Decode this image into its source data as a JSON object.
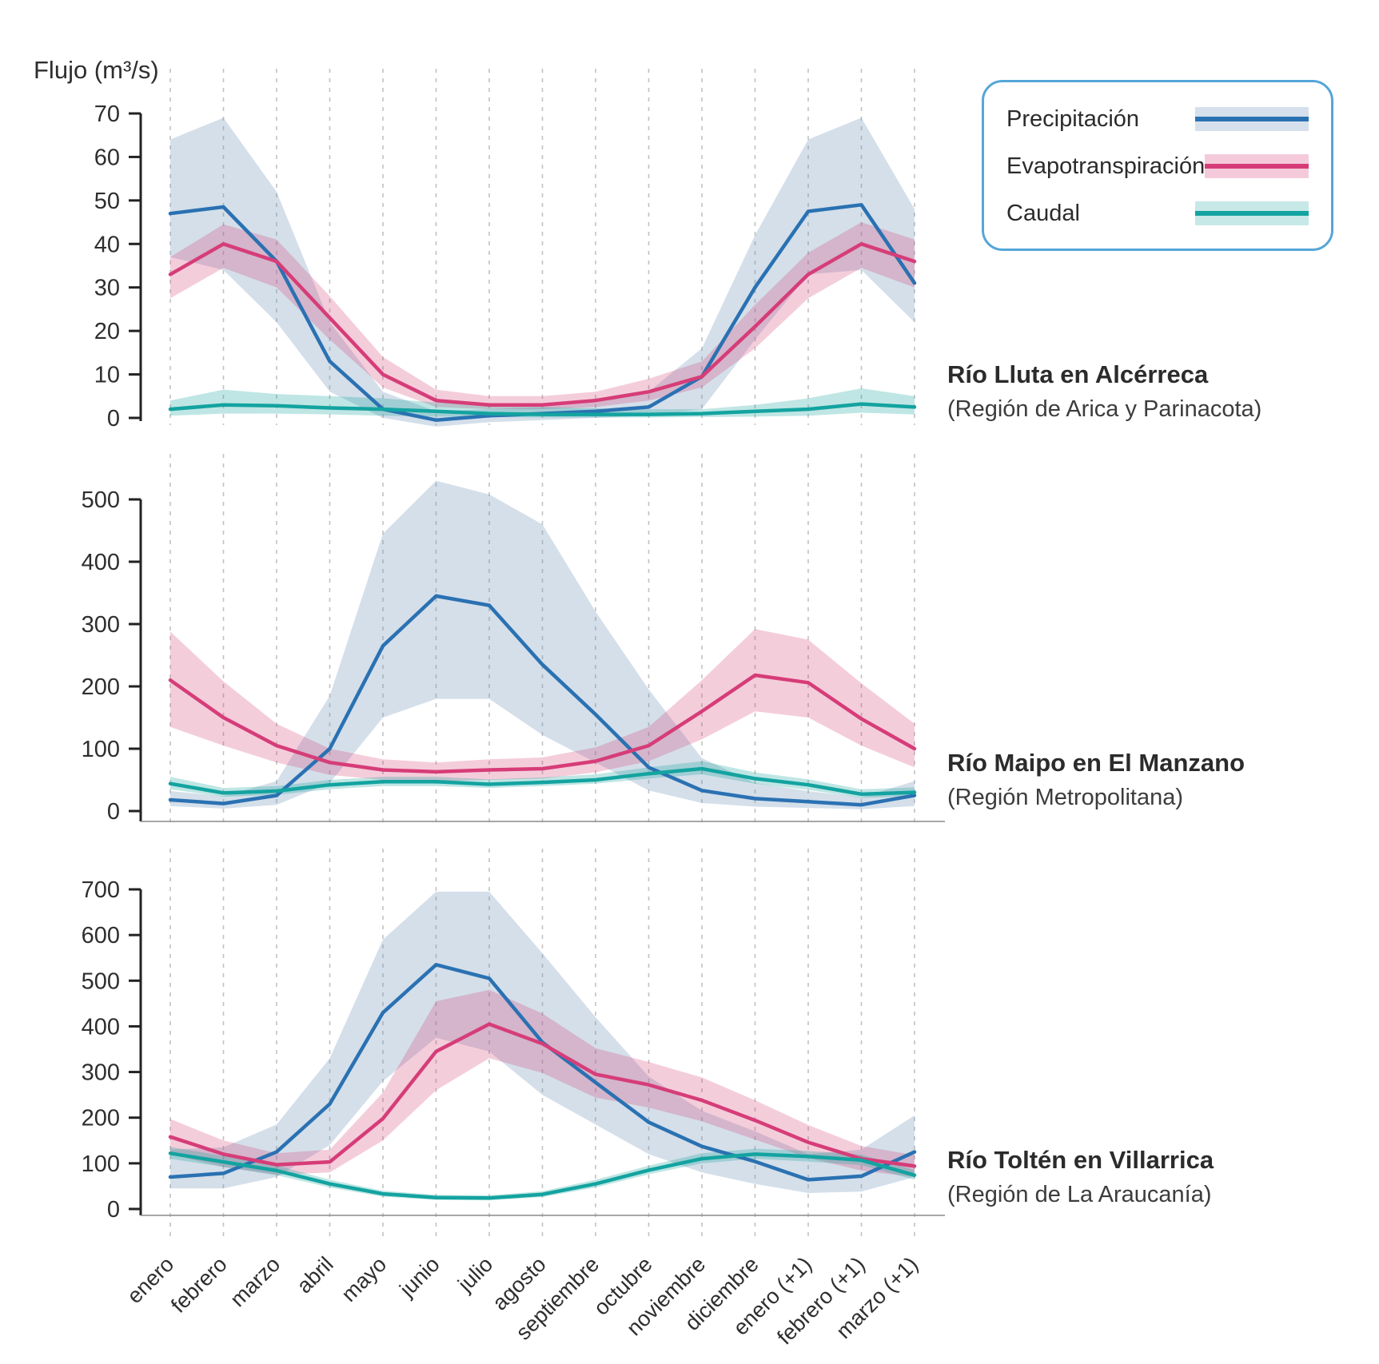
{
  "page": {
    "ylabel": "Flujo (m³/s)"
  },
  "legend": {
    "border_color": "#55a6d8",
    "items": [
      {
        "label": "Precipitación",
        "line": "#2a71b2",
        "band": "#d5e0ec"
      },
      {
        "label": "Evapotranspiración",
        "line": "#d63d78",
        "band": "#f4cadb"
      },
      {
        "label": "Caudal",
        "line": "#13a3a0",
        "band": "#c6e8e6"
      }
    ]
  },
  "months": [
    "enero",
    "febrero",
    "marzo",
    "abril",
    "mayo",
    "junio",
    "julio",
    "agosto",
    "septiembre",
    "octubre",
    "noviembre",
    "diciembre",
    "enero (+1)",
    "febrero (+1)",
    "marzo (+1)"
  ],
  "colors": {
    "precipitacion": {
      "line": "#2a71b2",
      "band": "rgba(100,140,180,0.28)"
    },
    "evapotranspiracion": {
      "line": "#d63d78",
      "band": "rgba(214,61,117,0.26)"
    },
    "caudal": {
      "line": "#13a3a0",
      "band": "rgba(18,161,157,0.27)"
    },
    "grid": "#c2c2c2",
    "axis": "#222222",
    "bottom_spine": "#8a8a8a",
    "tick_text": "#2e2e2e"
  },
  "chart_data": [
    {
      "type": "line",
      "title": "Río Lluta en Alcérreca",
      "subtitle": "(Región de Arica y Parinacota)",
      "ylim": [
        0,
        70
      ],
      "ytick_step": 10,
      "grid": true,
      "legend_position": "top-right",
      "series": [
        {
          "name": "Precipitación",
          "key": "precipitacion",
          "mean": [
            47,
            48.5,
            36,
            13,
            2,
            -0.5,
            0.5,
            1,
            1.5,
            2.5,
            9.5,
            30,
            47.5,
            49,
            31
          ],
          "low": [
            37,
            34,
            22,
            6,
            0,
            -2,
            -1,
            -0.5,
            0,
            0.5,
            2,
            18,
            33,
            34,
            22
          ],
          "high": [
            64,
            69,
            52,
            22,
            6,
            1.5,
            2,
            2.5,
            3.5,
            6,
            16,
            42,
            64,
            69,
            48
          ]
        },
        {
          "name": "Evapotranspiración",
          "key": "evapotranspiracion",
          "mean": [
            33,
            40,
            36,
            23,
            10,
            4,
            3,
            3,
            4,
            6,
            9.5,
            21,
            33,
            40,
            36
          ],
          "low": [
            27.5,
            34.5,
            30,
            18,
            7,
            2.5,
            2,
            2,
            2.5,
            4,
            7,
            16,
            27.5,
            34.5,
            30
          ],
          "high": [
            37,
            44.5,
            41,
            28,
            14,
            6.5,
            5,
            5,
            6,
            9,
            13,
            26,
            38,
            45,
            41
          ]
        },
        {
          "name": "Caudal",
          "key": "caudal",
          "mean": [
            2,
            3,
            2.8,
            2.3,
            2,
            1.5,
            1,
            0.8,
            0.8,
            0.8,
            1,
            1.5,
            2,
            3.2,
            2.5
          ],
          "low": [
            0.5,
            1,
            1,
            0.8,
            0.5,
            0.3,
            0.2,
            0.1,
            0.1,
            0.1,
            0.2,
            0.3,
            0.5,
            1.2,
            0.8
          ],
          "high": [
            4,
            6.5,
            5.5,
            5,
            4.5,
            3.5,
            3,
            2.5,
            2.2,
            2,
            2,
            3,
            4.5,
            6.8,
            5
          ]
        }
      ]
    },
    {
      "type": "line",
      "title": "Río Maipo en El Manzano",
      "subtitle": "(Región Metropolitana)",
      "ylim": [
        0,
        500
      ],
      "ytick_step": 100,
      "grid": true,
      "series": [
        {
          "name": "Precipitación",
          "key": "precipitacion",
          "mean": [
            18,
            12,
            25,
            100,
            265,
            345,
            330,
            235,
            155,
            70,
            33,
            20,
            15,
            10,
            25
          ],
          "low": [
            8,
            4,
            10,
            45,
            150,
            180,
            180,
            122,
            78,
            33,
            13,
            7,
            5,
            3,
            8
          ],
          "high": [
            32,
            24,
            48,
            185,
            445,
            530,
            508,
            460,
            320,
            195,
            85,
            45,
            32,
            22,
            48
          ]
        },
        {
          "name": "Evapotranspiración",
          "key": "evapotranspiracion",
          "mean": [
            210,
            150,
            105,
            78,
            66,
            63,
            66,
            68,
            80,
            105,
            160,
            218,
            206,
            148,
            100
          ],
          "low": [
            135,
            105,
            78,
            58,
            50,
            48,
            50,
            52,
            62,
            80,
            115,
            160,
            150,
            105,
            70
          ],
          "high": [
            288,
            208,
            140,
            100,
            83,
            78,
            83,
            86,
            102,
            135,
            210,
            292,
            275,
            205,
            140
          ]
        },
        {
          "name": "Caudal",
          "key": "caudal",
          "mean": [
            44,
            29,
            32,
            42,
            47,
            47,
            43,
            46,
            50,
            60,
            68,
            52,
            42,
            27,
            30
          ],
          "low": [
            35,
            23,
            26,
            35,
            40,
            40,
            37,
            40,
            44,
            52,
            59,
            44,
            34,
            21,
            24
          ],
          "high": [
            55,
            37,
            40,
            50,
            55,
            55,
            51,
            54,
            59,
            70,
            80,
            62,
            51,
            35,
            38
          ]
        }
      ]
    },
    {
      "type": "line",
      "title": "Río Toltén en Villarrica",
      "subtitle": "(Región de La Araucanía)",
      "ylim": [
        0,
        700
      ],
      "ytick_step": 100,
      "grid": true,
      "series": [
        {
          "name": "Precipitación",
          "key": "precipitacion",
          "mean": [
            70,
            78,
            125,
            230,
            430,
            535,
            505,
            365,
            277,
            190,
            137,
            104,
            64,
            72,
            125
          ],
          "low": [
            45,
            45,
            70,
            140,
            280,
            375,
            345,
            250,
            185,
            120,
            80,
            55,
            35,
            38,
            70
          ],
          "high": [
            130,
            135,
            185,
            330,
            590,
            695,
            695,
            560,
            420,
            290,
            215,
            170,
            120,
            130,
            205
          ]
        },
        {
          "name": "Evapotranspiración",
          "key": "evapotranspiracion",
          "mean": [
            158,
            120,
            97,
            103,
            198,
            345,
            405,
            362,
            295,
            272,
            238,
            194,
            146,
            110,
            94
          ],
          "low": [
            120,
            92,
            75,
            80,
            150,
            260,
            330,
            298,
            244,
            222,
            192,
            152,
            112,
            84,
            70
          ],
          "high": [
            197,
            150,
            122,
            130,
            255,
            455,
            480,
            428,
            352,
            322,
            288,
            238,
            184,
            138,
            118
          ]
        },
        {
          "name": "Caudal",
          "key": "caudal",
          "mean": [
            122,
            103,
            84,
            55,
            33,
            25,
            24,
            32,
            55,
            85,
            110,
            120,
            115,
            107,
            74
          ],
          "low": [
            110,
            92,
            74,
            47,
            27,
            20,
            19,
            26,
            47,
            76,
            100,
            110,
            104,
            96,
            64
          ],
          "high": [
            136,
            116,
            95,
            64,
            40,
            31,
            30,
            39,
            64,
            95,
            122,
            132,
            127,
            119,
            85
          ]
        }
      ]
    }
  ]
}
